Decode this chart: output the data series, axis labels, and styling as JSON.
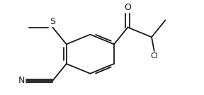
{
  "bg_color": "#ffffff",
  "line_color": "#1a1a1a",
  "line_width": 1.3,
  "font_size": 8,
  "xlim": [
    -0.55,
    2.55
  ],
  "ylim": [
    -0.65,
    1.35
  ]
}
